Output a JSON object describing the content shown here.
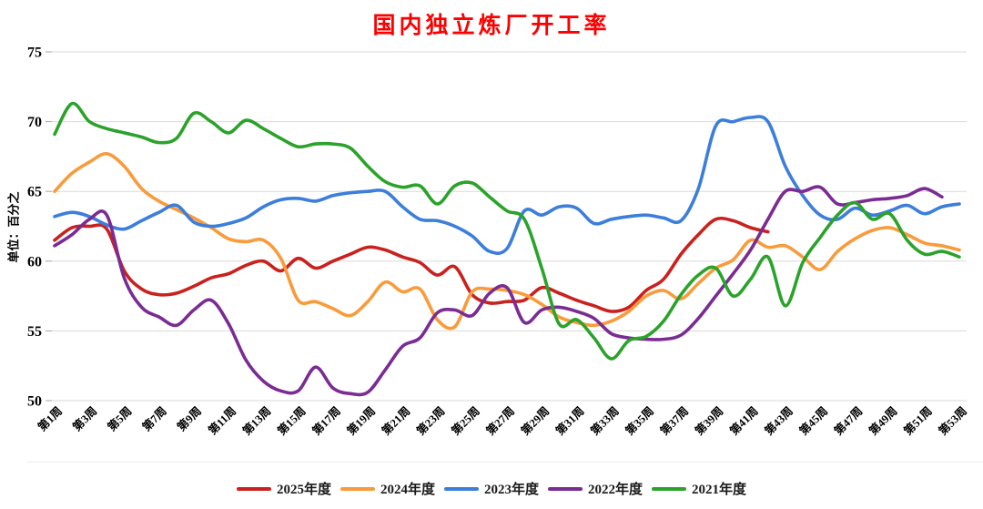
{
  "chart_data": {
    "type": "line",
    "title": "国内独立炼厂开工率",
    "title_color": "#fe0000",
    "ylabel": "单位：百分之",
    "ylim": [
      50,
      75
    ],
    "yticks": [
      75,
      70,
      65,
      60,
      55,
      50
    ],
    "x_range_weeks": [
      1,
      53
    ],
    "x_tick_labels": [
      "第1周",
      "第3周",
      "第5周",
      "第7周",
      "第9周",
      "第11周",
      "第13周",
      "第15周",
      "第17周",
      "第19周",
      "第21周",
      "第23周",
      "第25周",
      "第27周",
      "第29周",
      "第31周",
      "第33周",
      "第35周",
      "第37周",
      "第39周",
      "第41周",
      "第43周",
      "第45周",
      "第47周",
      "第49周",
      "第51周",
      "第53周"
    ],
    "grid": "horizontal",
    "grid_color": "#d9d9d9",
    "tick_color": "#a6a6a6",
    "legend_position": "bottom",
    "series": [
      {
        "name": "2025年度",
        "color": "#c9211e",
        "start_week": 1,
        "values": [
          61.5,
          62.4,
          62.5,
          62.3,
          59.3,
          58.0,
          57.6,
          57.7,
          58.2,
          58.8,
          59.1,
          59.7,
          60.0,
          59.3,
          60.2,
          59.5,
          60.0,
          60.5,
          61.0,
          60.8,
          60.3,
          59.9,
          59.0,
          59.6,
          57.6,
          57.0,
          57.1,
          57.2,
          58.1,
          57.7,
          57.2,
          56.8,
          56.4,
          56.7,
          57.9,
          58.7,
          60.5,
          61.9,
          63.0,
          62.9,
          62.4,
          62.1
        ]
      },
      {
        "name": "2024年度",
        "color": "#f99b3b",
        "start_week": 1,
        "values": [
          65.0,
          66.3,
          67.1,
          67.7,
          66.8,
          65.2,
          64.3,
          63.7,
          63.1,
          62.4,
          61.6,
          61.4,
          61.5,
          60.2,
          57.2,
          57.1,
          56.6,
          56.1,
          57.1,
          58.5,
          57.8,
          58.0,
          55.8,
          55.3,
          57.8,
          58.0,
          57.9,
          57.6,
          56.9,
          56.0,
          55.6,
          55.4,
          55.7,
          56.4,
          57.5,
          57.9,
          57.3,
          58.4,
          59.5,
          60.1,
          61.5,
          61.0,
          61.1,
          60.3,
          59.4,
          60.7,
          61.6,
          62.2,
          62.4,
          61.9,
          61.3,
          61.1,
          60.8
        ]
      },
      {
        "name": "2023年度",
        "color": "#3c7edb",
        "start_week": 1,
        "values": [
          63.2,
          63.5,
          63.2,
          62.6,
          62.3,
          62.9,
          63.5,
          64.0,
          62.8,
          62.5,
          62.7,
          63.1,
          63.9,
          64.4,
          64.5,
          64.3,
          64.7,
          64.9,
          65.0,
          65.0,
          63.9,
          63.0,
          62.9,
          62.5,
          61.8,
          60.7,
          60.9,
          63.6,
          63.3,
          63.9,
          63.8,
          62.7,
          63.0,
          63.2,
          63.3,
          63.1,
          62.9,
          65.2,
          69.7,
          70.0,
          70.3,
          70.0,
          66.8,
          64.7,
          63.3,
          63.0,
          63.8,
          63.3,
          63.6,
          64.0,
          63.4,
          63.9,
          64.1
        ]
      },
      {
        "name": "2022年度",
        "color": "#7a2c93",
        "start_week": 1,
        "values": [
          61.1,
          61.9,
          63.0,
          63.3,
          58.8,
          56.7,
          56.0,
          55.4,
          56.5,
          57.2,
          55.5,
          52.9,
          51.4,
          50.7,
          50.7,
          52.4,
          50.9,
          50.5,
          50.6,
          52.2,
          53.9,
          54.5,
          56.3,
          56.5,
          56.1,
          57.7,
          58.1,
          55.6,
          56.5,
          56.7,
          56.4,
          55.9,
          54.8,
          54.5,
          54.4,
          54.4,
          54.7,
          55.9,
          57.5,
          59.1,
          60.8,
          63.0,
          65.0,
          65.0,
          65.3,
          64.1,
          64.2,
          64.4,
          64.5,
          64.7,
          65.2,
          64.6
        ]
      },
      {
        "name": "2021年度",
        "color": "#2ba32b",
        "start_week": 1,
        "values": [
          69.1,
          71.3,
          70.0,
          69.5,
          69.2,
          68.9,
          68.5,
          68.8,
          70.6,
          70.0,
          69.2,
          70.1,
          69.5,
          68.8,
          68.2,
          68.4,
          68.4,
          68.1,
          66.8,
          65.7,
          65.3,
          65.4,
          64.1,
          65.4,
          65.6,
          64.6,
          63.6,
          63.0,
          59.5,
          55.5,
          55.8,
          54.5,
          53.0,
          54.3,
          54.6,
          55.7,
          57.6,
          59.0,
          59.5,
          57.5,
          58.7,
          60.3,
          56.8,
          59.9,
          61.7,
          63.3,
          64.2,
          63.0,
          63.4,
          61.5,
          60.5,
          60.7,
          60.3
        ]
      }
    ]
  }
}
